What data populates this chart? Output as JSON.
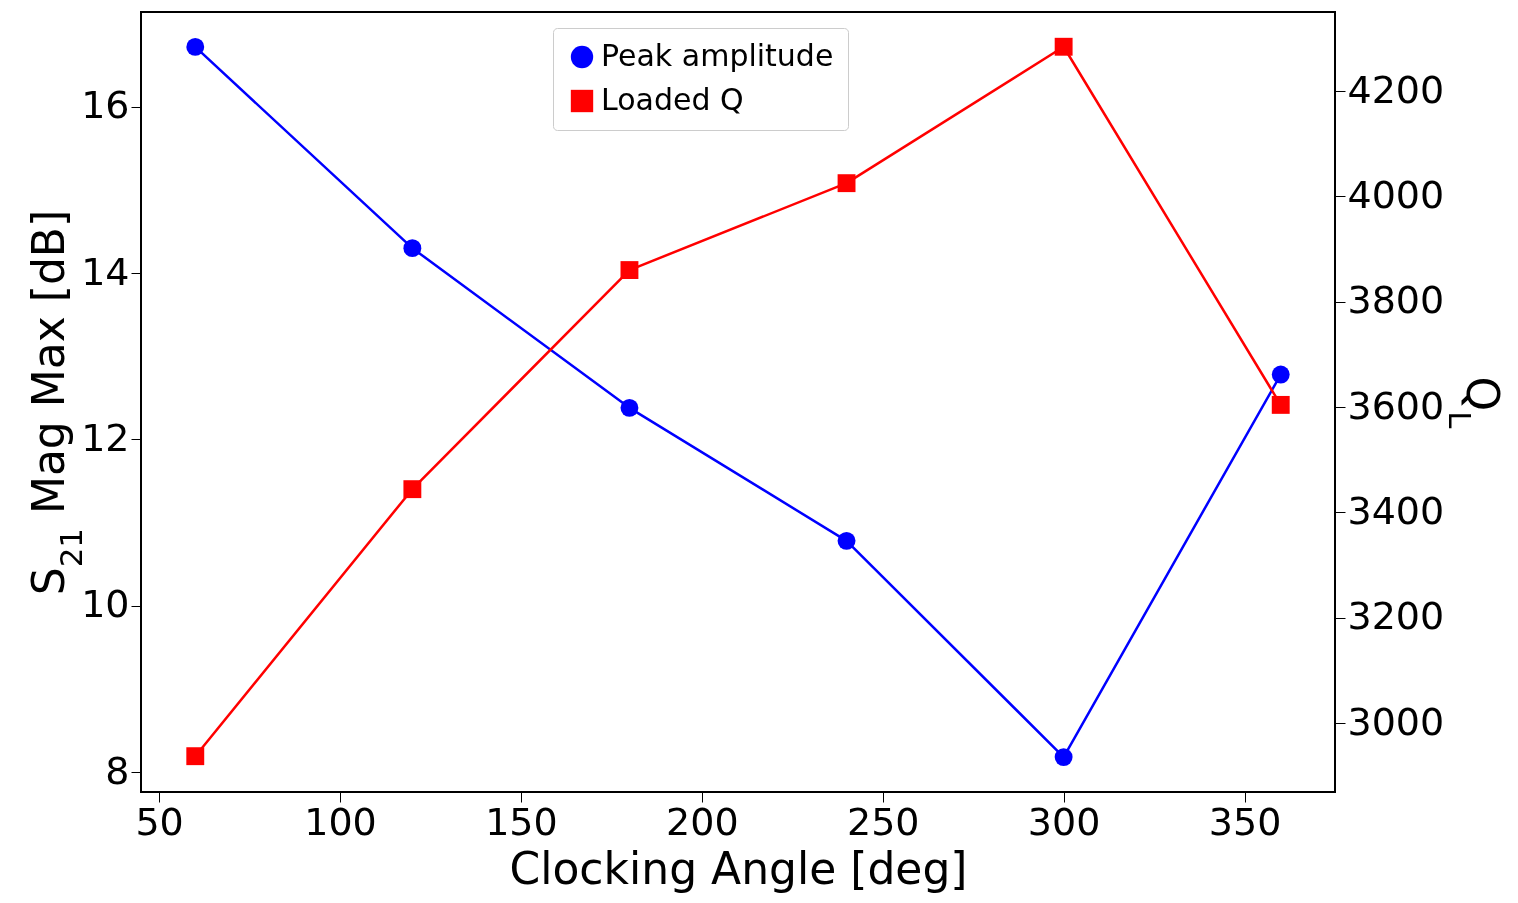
{
  "chart_data": {
    "type": "line",
    "xlabel": "Clocking Angle [deg]",
    "ylabel": "S$_{21}$ Mag Max [dB]",
    "y2label": "Q$_{L}$",
    "x": [
      60,
      120,
      180,
      240,
      300,
      360
    ],
    "series": [
      {
        "name": "Peak amplitude",
        "color": "#0000ff",
        "marker": "circle",
        "values": [
          16.72,
          14.3,
          12.38,
          10.78,
          8.18,
          12.78
        ]
      },
      {
        "name": "Loaded Q",
        "color": "#ff0000",
        "marker": "square",
        "axis": "y2",
        "values": [
          2937,
          3444,
          3860,
          4025,
          4284,
          3604
        ]
      }
    ],
    "xlim": [
      45,
      375
    ],
    "xticks": [
      50,
      100,
      150,
      200,
      250,
      300,
      350
    ],
    "ylim": [
      7.76,
      17.14
    ],
    "yticks": [
      8,
      10,
      12,
      14,
      16
    ],
    "y2lim": [
      2869,
      4350
    ],
    "y2ticks": [
      3000,
      3200,
      3400,
      3600,
      3800,
      4000,
      4200
    ],
    "legend": "top",
    "grid": false,
    "line_style": "solid"
  }
}
